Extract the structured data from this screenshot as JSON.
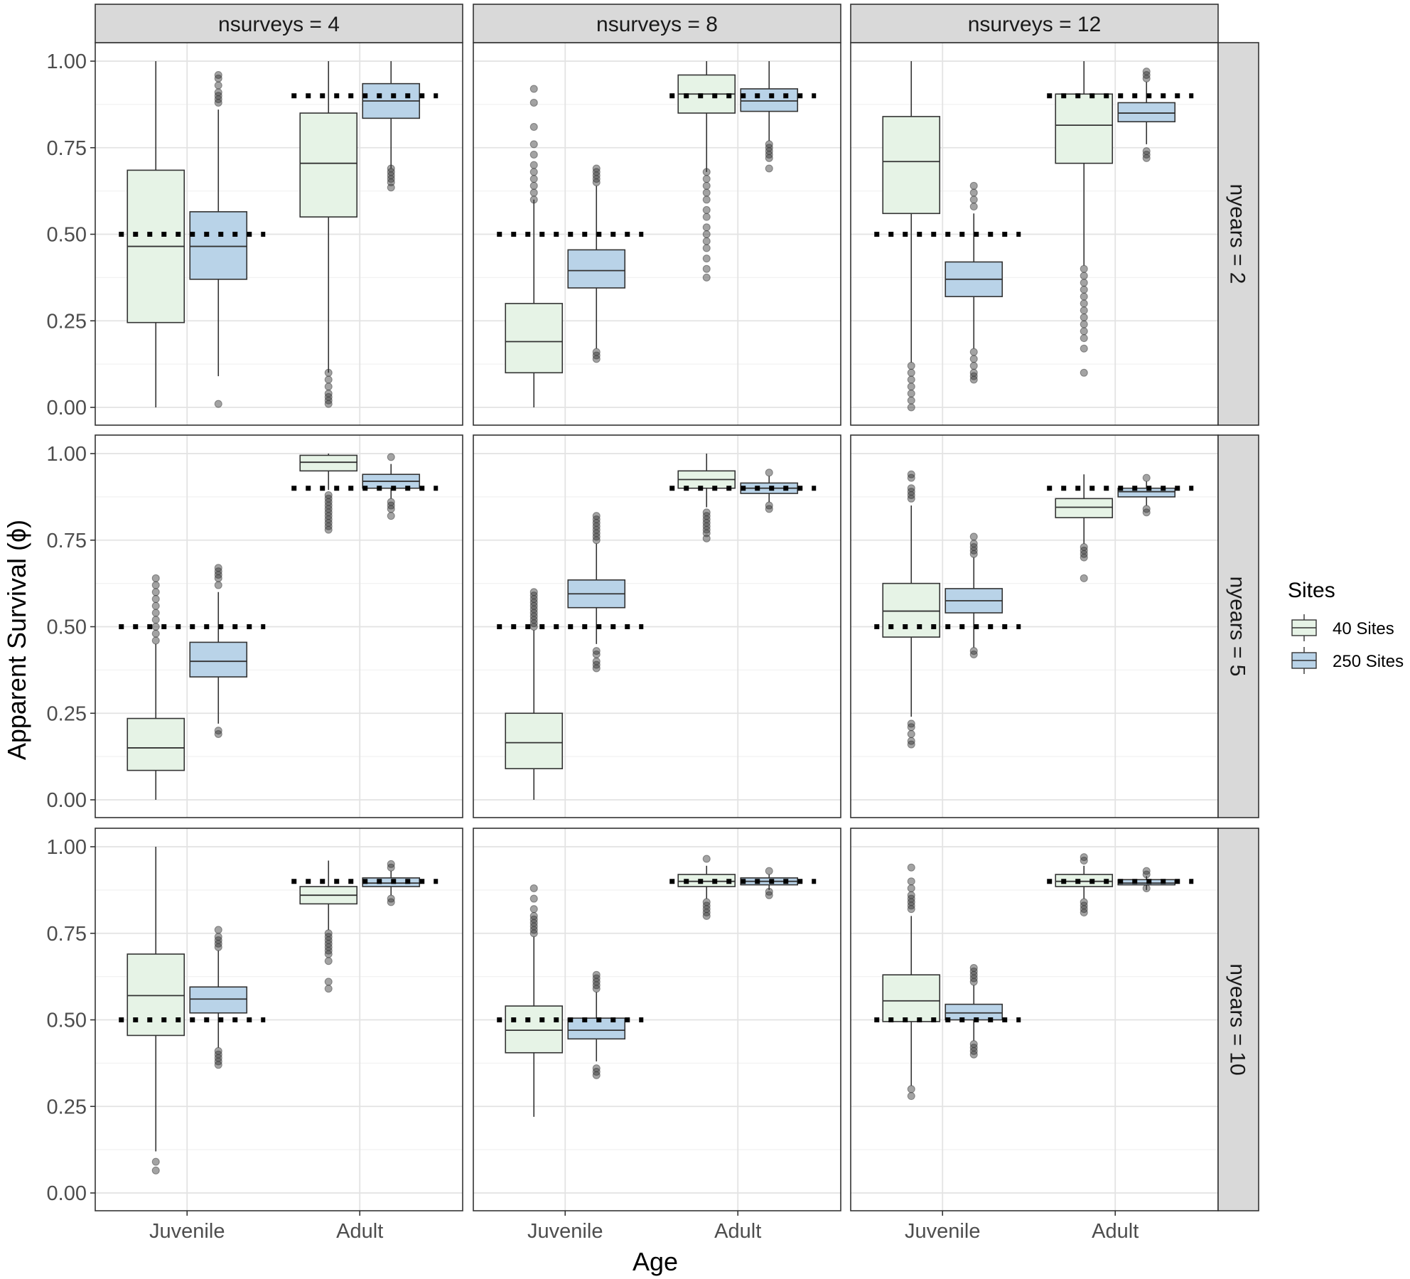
{
  "chart_data": {
    "type": "box",
    "xlabel": "Age",
    "ylabel": "Apparent Survival (ϕ)",
    "ylim": [
      0,
      1
    ],
    "y_ticks": [
      "0.00",
      "0.25",
      "0.50",
      "0.75",
      "1.00"
    ],
    "x_categories": [
      "Juvenile",
      "Adult"
    ],
    "col_facets": [
      "nsurveys = 4",
      "nsurveys = 8",
      "nsurveys = 12"
    ],
    "row_facets": [
      "nyears = 2",
      "nyears = 5",
      "nyears = 10"
    ],
    "legend": {
      "title": "Sites",
      "position": "right",
      "items": [
        {
          "label": "40 Sites",
          "color": "#e6f3e6"
        },
        {
          "label": "250 Sites",
          "color": "#b9d3e8"
        }
      ]
    },
    "reference_lines": {
      "Juvenile": 0.5,
      "Adult": 0.9,
      "style": "dotted"
    },
    "box_fields": [
      "q1",
      "median",
      "q3",
      "whisker_low",
      "whisker_high",
      "outliers"
    ],
    "panels": [
      {
        "row": 0,
        "col": 0,
        "boxes": {
          "Juvenile": {
            "40 Sites": [
              0.245,
              0.465,
              0.685,
              0.0,
              1.0,
              []
            ],
            "250 Sites": [
              0.37,
              0.465,
              0.565,
              0.09,
              0.86,
              [
                0.01,
                0.88,
                0.89,
                0.9,
                0.91,
                0.93,
                0.95,
                0.96
              ]
            ]
          },
          "Adult": {
            "40 Sites": [
              0.55,
              0.705,
              0.85,
              0.1,
              1.0,
              [
                0.01,
                0.02,
                0.03,
                0.04,
                0.06,
                0.08,
                0.1
              ]
            ],
            "250 Sites": [
              0.835,
              0.885,
              0.935,
              0.69,
              1.0,
              [
                0.635,
                0.65,
                0.66,
                0.67,
                0.68,
                0.69
              ]
            ]
          }
        }
      },
      {
        "row": 0,
        "col": 1,
        "boxes": {
          "Juvenile": {
            "40 Sites": [
              0.1,
              0.19,
              0.3,
              0.0,
              0.6,
              [
                0.6,
                0.62,
                0.64,
                0.66,
                0.68,
                0.7,
                0.73,
                0.76,
                0.81,
                0.88,
                0.92
              ]
            ],
            "250 Sites": [
              0.345,
              0.395,
              0.455,
              0.17,
              0.64,
              [
                0.14,
                0.15,
                0.16,
                0.65,
                0.66,
                0.67,
                0.68,
                0.69
              ]
            ]
          },
          "Adult": {
            "40 Sites": [
              0.85,
              0.905,
              0.96,
              0.68,
              1.0,
              [
                0.375,
                0.4,
                0.43,
                0.46,
                0.48,
                0.5,
                0.52,
                0.55,
                0.57,
                0.6,
                0.62,
                0.64,
                0.66,
                0.68
              ]
            ],
            "250 Sites": [
              0.855,
              0.885,
              0.92,
              0.77,
              1.0,
              [
                0.69,
                0.72,
                0.73,
                0.74,
                0.75,
                0.76
              ]
            ]
          }
        }
      },
      {
        "row": 0,
        "col": 2,
        "boxes": {
          "Juvenile": {
            "40 Sites": [
              0.56,
              0.71,
              0.84,
              0.13,
              1.0,
              [
                0.0,
                0.02,
                0.04,
                0.06,
                0.08,
                0.1,
                0.12
              ]
            ],
            "250 Sites": [
              0.32,
              0.37,
              0.42,
              0.17,
              0.56,
              [
                0.08,
                0.09,
                0.1,
                0.12,
                0.14,
                0.16,
                0.58,
                0.6,
                0.62,
                0.64
              ]
            ]
          },
          "Adult": {
            "40 Sites": [
              0.705,
              0.815,
              0.905,
              0.41,
              1.0,
              [
                0.1,
                0.17,
                0.2,
                0.22,
                0.24,
                0.26,
                0.28,
                0.3,
                0.32,
                0.34,
                0.36,
                0.38,
                0.4
              ]
            ],
            "250 Sites": [
              0.825,
              0.85,
              0.88,
              0.76,
              0.94,
              [
                0.72,
                0.73,
                0.74,
                0.95,
                0.96,
                0.97
              ]
            ]
          }
        }
      },
      {
        "row": 1,
        "col": 0,
        "boxes": {
          "Juvenile": {
            "40 Sites": [
              0.085,
              0.15,
              0.235,
              0.0,
              0.45,
              [
                0.46,
                0.48,
                0.5,
                0.52,
                0.54,
                0.56,
                0.58,
                0.6,
                0.62,
                0.64
              ]
            ],
            "250 Sites": [
              0.355,
              0.4,
              0.455,
              0.22,
              0.6,
              [
                0.19,
                0.2,
                0.62,
                0.64,
                0.65,
                0.66,
                0.67
              ]
            ]
          },
          "Adult": {
            "40 Sites": [
              0.95,
              0.975,
              0.995,
              0.895,
              1.0,
              [
                0.78,
                0.79,
                0.8,
                0.81,
                0.82,
                0.83,
                0.84,
                0.85,
                0.86,
                0.87,
                0.88
              ]
            ],
            "250 Sites": [
              0.9,
              0.92,
              0.94,
              0.87,
              0.97,
              [
                0.82,
                0.84,
                0.85,
                0.86,
                0.99
              ]
            ]
          }
        }
      },
      {
        "row": 1,
        "col": 1,
        "boxes": {
          "Juvenile": {
            "40 Sites": [
              0.09,
              0.165,
              0.25,
              0.0,
              0.49,
              [
                0.5,
                0.51,
                0.52,
                0.53,
                0.54,
                0.55,
                0.56,
                0.57,
                0.58,
                0.59,
                0.6
              ]
            ],
            "250 Sites": [
              0.555,
              0.595,
              0.635,
              0.45,
              0.74,
              [
                0.38,
                0.39,
                0.4,
                0.42,
                0.43,
                0.75,
                0.76,
                0.77,
                0.78,
                0.79,
                0.8,
                0.81,
                0.82
              ]
            ]
          },
          "Adult": {
            "40 Sites": [
              0.9,
              0.925,
              0.95,
              0.845,
              1.0,
              [
                0.755,
                0.77,
                0.78,
                0.79,
                0.8,
                0.81,
                0.82,
                0.83
              ]
            ],
            "250 Sites": [
              0.885,
              0.9,
              0.915,
              0.86,
              0.935,
              [
                0.84,
                0.85,
                0.945
              ]
            ]
          }
        }
      },
      {
        "row": 1,
        "col": 2,
        "boxes": {
          "Juvenile": {
            "40 Sites": [
              0.47,
              0.545,
              0.625,
              0.24,
              0.85,
              [
                0.16,
                0.17,
                0.19,
                0.21,
                0.22,
                0.87,
                0.88,
                0.89,
                0.9,
                0.93,
                0.94
              ]
            ],
            "250 Sites": [
              0.54,
              0.575,
              0.61,
              0.44,
              0.7,
              [
                0.42,
                0.43,
                0.71,
                0.72,
                0.73,
                0.74,
                0.76
              ]
            ]
          },
          "Adult": {
            "40 Sites": [
              0.815,
              0.845,
              0.87,
              0.74,
              0.94,
              [
                0.64,
                0.7,
                0.71,
                0.72,
                0.73
              ]
            ],
            "250 Sites": [
              0.875,
              0.89,
              0.9,
              0.85,
              0.92,
              [
                0.83,
                0.84,
                0.93
              ]
            ]
          }
        }
      },
      {
        "row": 2,
        "col": 0,
        "boxes": {
          "Juvenile": {
            "40 Sites": [
              0.455,
              0.57,
              0.69,
              0.12,
              1.0,
              [
                0.065,
                0.09
              ]
            ],
            "250 Sites": [
              0.52,
              0.56,
              0.595,
              0.42,
              0.7,
              [
                0.37,
                0.38,
                0.39,
                0.4,
                0.41,
                0.71,
                0.72,
                0.73,
                0.74,
                0.76
              ]
            ]
          },
          "Adult": {
            "40 Sites": [
              0.835,
              0.86,
              0.885,
              0.76,
              0.96,
              [
                0.59,
                0.61,
                0.67,
                0.69,
                0.7,
                0.71,
                0.72,
                0.73,
                0.74,
                0.75
              ]
            ],
            "250 Sites": [
              0.885,
              0.895,
              0.91,
              0.86,
              0.93,
              [
                0.84,
                0.85,
                0.94,
                0.95
              ]
            ]
          }
        }
      },
      {
        "row": 2,
        "col": 1,
        "boxes": {
          "Juvenile": {
            "40 Sites": [
              0.405,
              0.47,
              0.54,
              0.22,
              0.74,
              [
                0.75,
                0.76,
                0.77,
                0.78,
                0.79,
                0.8,
                0.82,
                0.85,
                0.88
              ]
            ],
            "250 Sites": [
              0.445,
              0.47,
              0.505,
              0.38,
              0.58,
              [
                0.34,
                0.35,
                0.36,
                0.59,
                0.6,
                0.61,
                0.62,
                0.63
              ]
            ]
          },
          "Adult": {
            "40 Sites": [
              0.885,
              0.9,
              0.92,
              0.85,
              0.945,
              [
                0.8,
                0.81,
                0.82,
                0.83,
                0.84,
                0.965
              ]
            ],
            "250 Sites": [
              0.89,
              0.9,
              0.91,
              0.875,
              0.92,
              [
                0.86,
                0.87,
                0.93
              ]
            ]
          }
        }
      },
      {
        "row": 2,
        "col": 2,
        "boxes": {
          "Juvenile": {
            "40 Sites": [
              0.495,
              0.555,
              0.63,
              0.31,
              0.8,
              [
                0.28,
                0.3,
                0.82,
                0.83,
                0.84,
                0.85,
                0.86,
                0.88,
                0.9,
                0.94
              ]
            ],
            "250 Sites": [
              0.5,
              0.52,
              0.545,
              0.44,
              0.6,
              [
                0.4,
                0.41,
                0.42,
                0.43,
                0.61,
                0.62,
                0.63,
                0.64,
                0.65
              ]
            ]
          },
          "Adult": {
            "40 Sites": [
              0.885,
              0.9,
              0.92,
              0.85,
              0.945,
              [
                0.81,
                0.82,
                0.83,
                0.84,
                0.96,
                0.97
              ]
            ],
            "250 Sites": [
              0.89,
              0.895,
              0.905,
              0.875,
              0.915,
              [
                0.88,
                0.92,
                0.93
              ]
            ]
          }
        }
      }
    ]
  }
}
